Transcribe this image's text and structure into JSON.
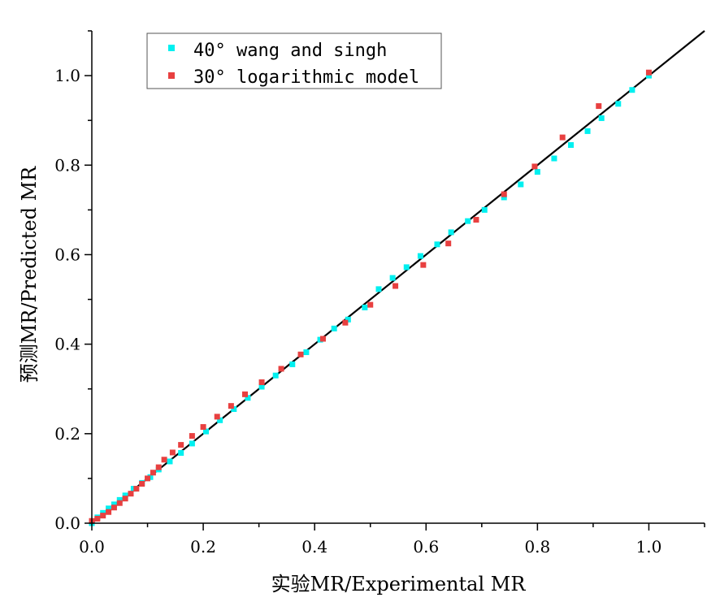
{
  "chart_data": {
    "type": "scatter",
    "xlabel": "实验MR/Experimental MR",
    "ylabel": "预测MR/Predicted MR",
    "xlim": [
      0,
      1.1
    ],
    "ylim": [
      0,
      1.1
    ],
    "xticks": [
      "0.0",
      "0.2",
      "0.4",
      "0.6",
      "0.8",
      "1.0"
    ],
    "yticks": [
      "0.0",
      "0.2",
      "0.4",
      "0.6",
      "0.8",
      "1.0"
    ],
    "grid": false,
    "legend_position": "top-left",
    "reference_line": {
      "x": [
        0,
        1.1
      ],
      "y": [
        0,
        1.1
      ],
      "color": "#000000"
    },
    "series": [
      {
        "name": "40° wang and singh",
        "color": "#00f0f0",
        "points": [
          [
            0.0,
            0.0
          ],
          [
            0.01,
            0.013
          ],
          [
            0.02,
            0.023
          ],
          [
            0.03,
            0.033
          ],
          [
            0.04,
            0.042
          ],
          [
            0.05,
            0.052
          ],
          [
            0.06,
            0.062
          ],
          [
            0.075,
            0.077
          ],
          [
            0.09,
            0.09
          ],
          [
            0.105,
            0.103
          ],
          [
            0.12,
            0.12
          ],
          [
            0.14,
            0.138
          ],
          [
            0.16,
            0.157
          ],
          [
            0.18,
            0.178
          ],
          [
            0.205,
            0.205
          ],
          [
            0.23,
            0.23
          ],
          [
            0.255,
            0.255
          ],
          [
            0.28,
            0.28
          ],
          [
            0.305,
            0.305
          ],
          [
            0.33,
            0.33
          ],
          [
            0.36,
            0.355
          ],
          [
            0.385,
            0.382
          ],
          [
            0.41,
            0.41
          ],
          [
            0.435,
            0.435
          ],
          [
            0.46,
            0.455
          ],
          [
            0.49,
            0.482
          ],
          [
            0.515,
            0.523
          ],
          [
            0.54,
            0.548
          ],
          [
            0.565,
            0.572
          ],
          [
            0.59,
            0.597
          ],
          [
            0.62,
            0.623
          ],
          [
            0.645,
            0.65
          ],
          [
            0.675,
            0.675
          ],
          [
            0.705,
            0.7
          ],
          [
            0.74,
            0.728
          ],
          [
            0.77,
            0.757
          ],
          [
            0.8,
            0.785
          ],
          [
            0.83,
            0.815
          ],
          [
            0.86,
            0.845
          ],
          [
            0.89,
            0.876
          ],
          [
            0.915,
            0.905
          ],
          [
            0.945,
            0.937
          ],
          [
            0.97,
            0.968
          ],
          [
            1.0,
            1.0
          ]
        ]
      },
      {
        "name": "30° logarithmic model",
        "color": "#e84040",
        "points": [
          [
            0.0,
            0.005
          ],
          [
            0.01,
            0.01
          ],
          [
            0.02,
            0.017
          ],
          [
            0.03,
            0.025
          ],
          [
            0.04,
            0.035
          ],
          [
            0.05,
            0.045
          ],
          [
            0.06,
            0.055
          ],
          [
            0.07,
            0.066
          ],
          [
            0.08,
            0.077
          ],
          [
            0.09,
            0.088
          ],
          [
            0.1,
            0.1
          ],
          [
            0.11,
            0.113
          ],
          [
            0.12,
            0.125
          ],
          [
            0.13,
            0.142
          ],
          [
            0.145,
            0.158
          ],
          [
            0.16,
            0.175
          ],
          [
            0.18,
            0.195
          ],
          [
            0.2,
            0.215
          ],
          [
            0.225,
            0.238
          ],
          [
            0.25,
            0.262
          ],
          [
            0.275,
            0.288
          ],
          [
            0.305,
            0.315
          ],
          [
            0.34,
            0.345
          ],
          [
            0.375,
            0.377
          ],
          [
            0.415,
            0.412
          ],
          [
            0.455,
            0.448
          ],
          [
            0.5,
            0.488
          ],
          [
            0.545,
            0.53
          ],
          [
            0.595,
            0.577
          ],
          [
            0.64,
            0.625
          ],
          [
            0.69,
            0.678
          ],
          [
            0.74,
            0.735
          ],
          [
            0.795,
            0.797
          ],
          [
            0.845,
            0.862
          ],
          [
            0.91,
            0.932
          ],
          [
            1.0,
            1.007
          ]
        ]
      }
    ]
  }
}
